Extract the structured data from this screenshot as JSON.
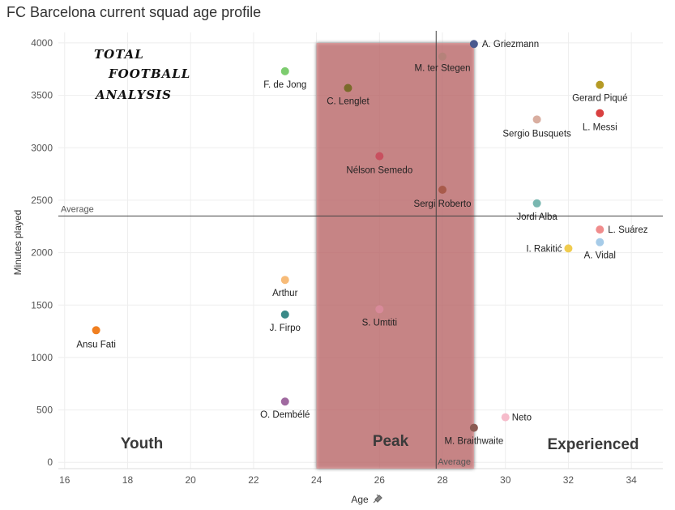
{
  "title": "FC Barcelona current squad age profile",
  "logo": {
    "line1": "TOTAL",
    "line2": "FOOTBALL",
    "line3": "ANALYSIS"
  },
  "chart_data": {
    "type": "scatter",
    "title": "FC Barcelona current squad age profile",
    "xlabel": "Age",
    "ylabel": "Minutes played",
    "xlim": [
      15.8,
      35
    ],
    "ylim": [
      -60,
      4100
    ],
    "xticks": [
      16,
      18,
      20,
      22,
      24,
      26,
      28,
      30,
      32,
      34
    ],
    "yticks": [
      0,
      500,
      1000,
      1500,
      2000,
      2500,
      3000,
      3500,
      4000
    ],
    "grid": true,
    "peak_band": {
      "from": 24,
      "to": 29
    },
    "average_minutes": 2350,
    "average_age": 27.8,
    "average_label": "Average",
    "zones": [
      "Youth",
      "Peak",
      "Experienced"
    ],
    "points": [
      {
        "name": "A. Griezmann",
        "age": 29,
        "minutes": 3990,
        "color": "#4a5a8f"
      },
      {
        "name": "M. ter Stegen",
        "age": 28,
        "minutes": 3870,
        "color": "#b5827a"
      },
      {
        "name": "F. de Jong",
        "age": 23,
        "minutes": 3730,
        "color": "#7dcc6f"
      },
      {
        "name": "C. Lenglet",
        "age": 25,
        "minutes": 3570,
        "color": "#7a6a2a"
      },
      {
        "name": "Gerard Piqué",
        "age": 33,
        "minutes": 3600,
        "color": "#b59a25"
      },
      {
        "name": "L. Messi",
        "age": 33,
        "minutes": 3330,
        "color": "#d94040"
      },
      {
        "name": "Sergio Busquets",
        "age": 31,
        "minutes": 3270,
        "color": "#d9aea0"
      },
      {
        "name": "Nélson Semedo",
        "age": 26,
        "minutes": 2920,
        "color": "#c8505f"
      },
      {
        "name": "Sergi Roberto",
        "age": 28,
        "minutes": 2600,
        "color": "#a85a4a"
      },
      {
        "name": "Jordi Alba",
        "age": 31,
        "minutes": 2470,
        "color": "#79b7b0"
      },
      {
        "name": "L. Suárez",
        "age": 33,
        "minutes": 2220,
        "color": "#f08c8c"
      },
      {
        "name": "A. Vidal",
        "age": 33,
        "minutes": 2100,
        "color": "#a6cbe8"
      },
      {
        "name": "I. Rakitić",
        "age": 32,
        "minutes": 2040,
        "color": "#f0cc50"
      },
      {
        "name": "Arthur",
        "age": 23,
        "minutes": 1740,
        "color": "#f7bb78"
      },
      {
        "name": "S. Umtiti",
        "age": 26,
        "minutes": 1460,
        "color": "#d88a9a"
      },
      {
        "name": "J. Firpo",
        "age": 23,
        "minutes": 1410,
        "color": "#3a8a88"
      },
      {
        "name": "Ansu Fati",
        "age": 17,
        "minutes": 1260,
        "color": "#f07f20"
      },
      {
        "name": "O. Dembélé",
        "age": 23,
        "minutes": 580,
        "color": "#a06aa0"
      },
      {
        "name": "Neto",
        "age": 30,
        "minutes": 430,
        "color": "#f6bccb"
      },
      {
        "name": "M. Braithwaite",
        "age": 29,
        "minutes": 330,
        "color": "#8a5a52"
      }
    ]
  }
}
